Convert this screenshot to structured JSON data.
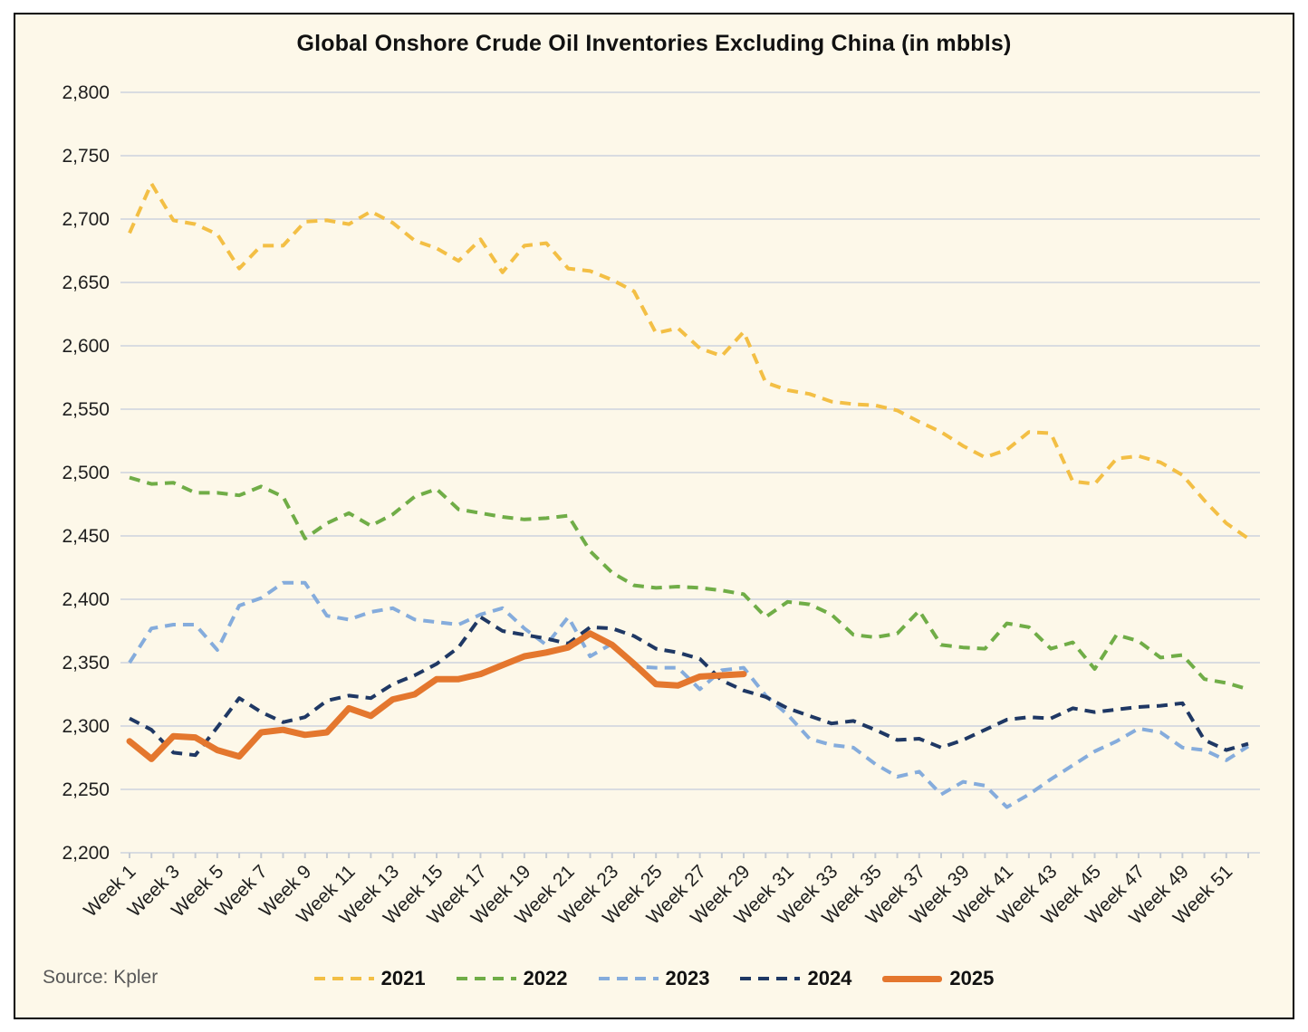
{
  "title": "Global Onshore Crude Oil Inventories Excluding China (in mbbls)",
  "source": "Source: Kpler",
  "colors": {
    "background": "#FDF8E9",
    "border": "#000000",
    "gridline": "#D9DCE1",
    "tick": "#C5CBD3",
    "axis_text": "#1F1F1F",
    "source_text": "#595959"
  },
  "chart_data": {
    "type": "line",
    "title": "Global Onshore Crude Oil Inventories Excluding China (in mbbls)",
    "xlabel": "",
    "ylabel": "",
    "ylim": [
      2200,
      2800
    ],
    "y_tick_step": 50,
    "grid": true,
    "legend_position": "bottom",
    "weeks": 52,
    "x_tick_labels": [
      "Week 1",
      "Week 3",
      "Week 5",
      "Week 7",
      "Week 9",
      "Week 11",
      "Week 13",
      "Week 15",
      "Week 17",
      "Week 19",
      "Week 21",
      "Week 23",
      "Week 25",
      "Week 27",
      "Week 29",
      "Week 31",
      "Week 33",
      "Week 35",
      "Week 37",
      "Week 39",
      "Week 41",
      "Week 43",
      "Week 45",
      "Week 47",
      "Week 49",
      "Week 51"
    ],
    "series": [
      {
        "name": "2021",
        "color": "#F3BF45",
        "style": "dashed",
        "width": 4,
        "values": [
          2689,
          2728,
          2699,
          2696,
          2688,
          2661,
          2679,
          2679,
          2698,
          2699,
          2696,
          2706,
          2697,
          2683,
          2677,
          2667,
          2684,
          2658,
          2679,
          2681,
          2661,
          2659,
          2652,
          2643,
          2610,
          2614,
          2598,
          2592,
          2611,
          2571,
          2565,
          2562,
          2556,
          2554,
          2553,
          2549,
          2540,
          2532,
          2521,
          2512,
          2518,
          2532,
          2531,
          2493,
          2491,
          2511,
          2513,
          2508,
          2498,
          2478,
          2460,
          2448
        ]
      },
      {
        "name": "2022",
        "color": "#70AD47",
        "style": "dashed",
        "width": 4,
        "values": [
          2496,
          2491,
          2492,
          2484,
          2484,
          2482,
          2489,
          2481,
          2448,
          2460,
          2468,
          2458,
          2467,
          2481,
          2487,
          2471,
          2468,
          2465,
          2463,
          2464,
          2466,
          2438,
          2421,
          2411,
          2409,
          2410,
          2409,
          2407,
          2404,
          2386,
          2398,
          2396,
          2388,
          2372,
          2370,
          2373,
          2391,
          2364,
          2362,
          2361,
          2381,
          2378,
          2361,
          2366,
          2345,
          2372,
          2367,
          2354,
          2356,
          2337,
          2334,
          2329
        ]
      },
      {
        "name": "2023",
        "color": "#85ACDC",
        "style": "dashed",
        "width": 4,
        "values": [
          2350,
          2377,
          2380,
          2380,
          2360,
          2395,
          2401,
          2413,
          2413,
          2387,
          2384,
          2390,
          2393,
          2384,
          2382,
          2380,
          2388,
          2393,
          2377,
          2364,
          2386,
          2355,
          2365,
          2347,
          2346,
          2346,
          2329,
          2344,
          2346,
          2324,
          2309,
          2290,
          2285,
          2283,
          2270,
          2260,
          2264,
          2246,
          2256,
          2253,
          2236,
          2246,
          2258,
          2269,
          2280,
          2288,
          2298,
          2295,
          2283,
          2281,
          2273,
          2284
        ]
      },
      {
        "name": "2024",
        "color": "#1F3864",
        "style": "dashed",
        "width": 4,
        "values": [
          2306,
          2297,
          2279,
          2277,
          2299,
          2322,
          2311,
          2303,
          2307,
          2320,
          2324,
          2322,
          2333,
          2340,
          2349,
          2362,
          2386,
          2375,
          2372,
          2369,
          2365,
          2378,
          2377,
          2371,
          2361,
          2358,
          2353,
          2336,
          2328,
          2323,
          2314,
          2308,
          2302,
          2304,
          2297,
          2289,
          2290,
          2283,
          2289,
          2297,
          2305,
          2307,
          2306,
          2314,
          2311,
          2313,
          2315,
          2316,
          2318,
          2289,
          2281,
          2286
        ]
      },
      {
        "name": "2025",
        "color": "#E4772E",
        "style": "solid",
        "width": 7,
        "values": [
          2288,
          2274,
          2292,
          2291,
          2281,
          2276,
          2295,
          2297,
          2293,
          2295,
          2314,
          2308,
          2321,
          2325,
          2337,
          2337,
          2341,
          2348,
          2355,
          2358,
          2362,
          2373,
          2364,
          2349,
          2333,
          2332,
          2339,
          2340,
          2341
        ]
      }
    ]
  }
}
